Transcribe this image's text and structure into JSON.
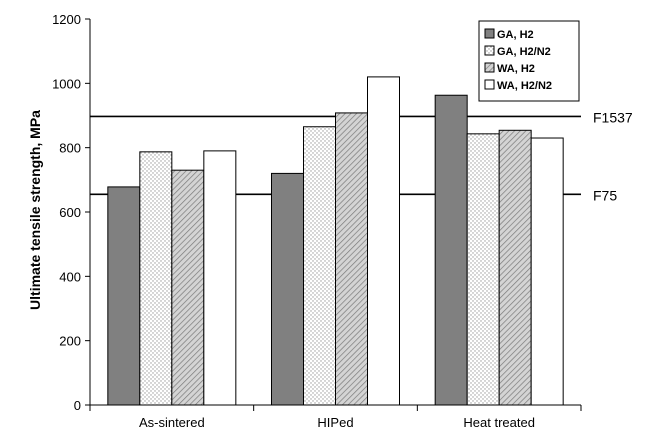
{
  "chart_data": {
    "type": "bar",
    "title": "",
    "xlabel": "",
    "ylabel": "Ultimate tensile strength, MPa",
    "ylim": [
      0,
      1200
    ],
    "yticks": [
      "0",
      "200",
      "400",
      "600",
      "800",
      "1000",
      "1200"
    ],
    "categories": [
      "As-sintered",
      "HIPed",
      "Heat treated"
    ],
    "series": [
      {
        "name": "GA, H2",
        "values": [
          678,
          720,
          963
        ],
        "fill": "#808080",
        "pattern": "solid"
      },
      {
        "name": "GA, H2/N2",
        "values": [
          787,
          865,
          843
        ],
        "fill": "#ffffff",
        "pattern": "dots"
      },
      {
        "name": "WA, H2",
        "values": [
          730,
          908,
          854
        ],
        "fill": "#cccccc",
        "pattern": "hatch"
      },
      {
        "name": "WA, H2/N2",
        "values": [
          790,
          1020,
          830
        ],
        "fill": "#ffffff",
        "pattern": "none"
      }
    ],
    "reference_lines": [
      {
        "label": "F1537",
        "value": 897
      },
      {
        "label": "F75",
        "value": 655
      }
    ],
    "grid": false,
    "legend_position": "top-right"
  }
}
